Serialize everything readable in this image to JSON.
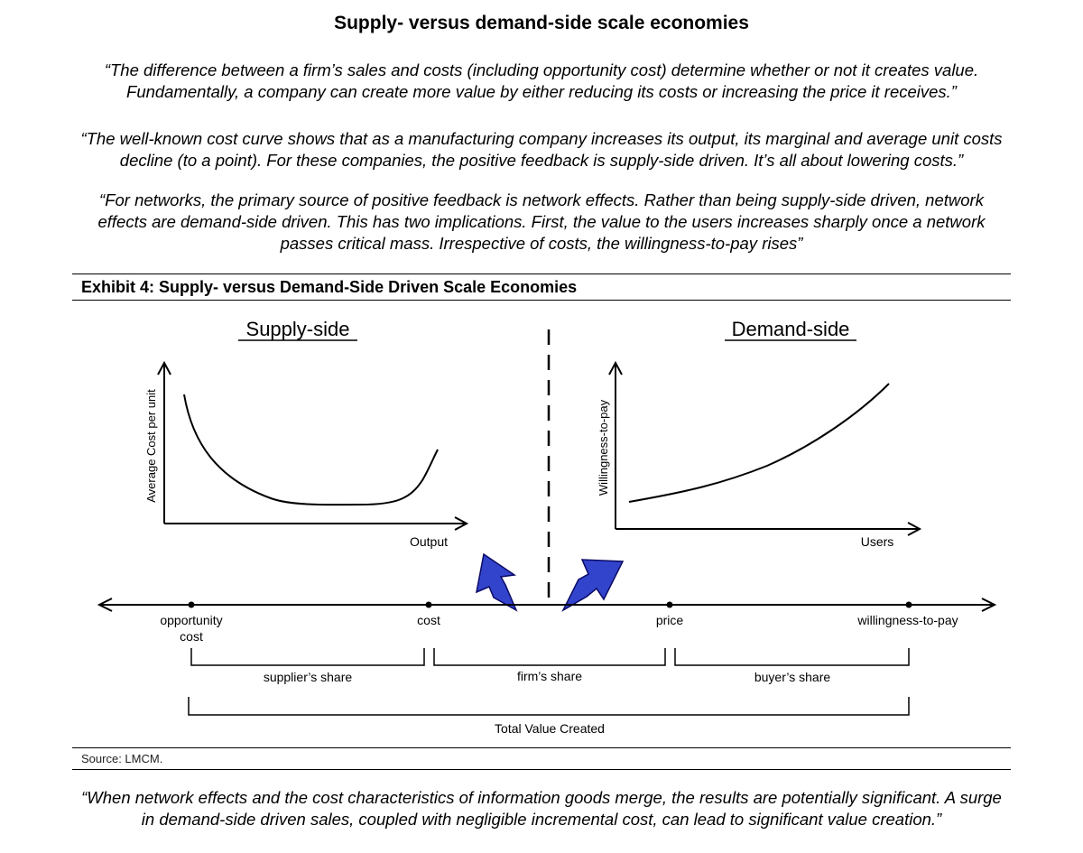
{
  "title": "Supply- versus demand-side scale economies",
  "quotes": [
    {
      "line1": "“The difference between a firm’s sales and costs (including opportunity cost) determine whether or not it creates value.",
      "line2": "Fundamentally, a company can create more value by either reducing its costs or increasing the price it receives.”"
    },
    {
      "line1": "“The well-known cost curve shows that as a manufacturing company increases its output, its marginal and average unit costs",
      "line2": "decline (to a point). For these companies, the positive feedback is supply-side driven. It’s all about lowering costs.”"
    },
    {
      "line1": "“For networks, the primary source of positive feedback is network effects. Rather than being supply-side driven, network",
      "line2": "effects are demand-side driven. This has two implications. First, the value to the users increases sharply once a network",
      "line3": "passes critical mass. Irrespective of costs, the willingness-to-pay rises”"
    }
  ],
  "exhibit": {
    "title": "Exhibit 4: Supply- versus Demand-Side Driven Scale Economies",
    "source": "Source: LMCM.",
    "supply": {
      "heading": "Supply-side",
      "ylabel": "Average Cost per unit",
      "xlabel": "Output"
    },
    "demand": {
      "heading": "Demand-side",
      "ylabel": "Willingness-to-pay",
      "xlabel": "Users"
    },
    "axis_points": {
      "opportunity_1": "opportunity",
      "opportunity_2": "cost",
      "cost": "cost",
      "price": "price",
      "wtp": "willingness-to-pay"
    },
    "shares": {
      "supplier": "supplier’s share",
      "firm": "firm’s share",
      "buyer": "buyer’s share",
      "total": "Total Value Created"
    },
    "colors": {
      "arrow_fill": "#3344cc",
      "arrow_stroke": "#0a0a66"
    }
  },
  "closing_quote": {
    "line1": "“When network effects and the cost characteristics of information goods merge, the results are potentially significant. A surge",
    "line2": "in demand-side driven sales, coupled with negligible incremental cost, can lead to significant value creation.”"
  }
}
